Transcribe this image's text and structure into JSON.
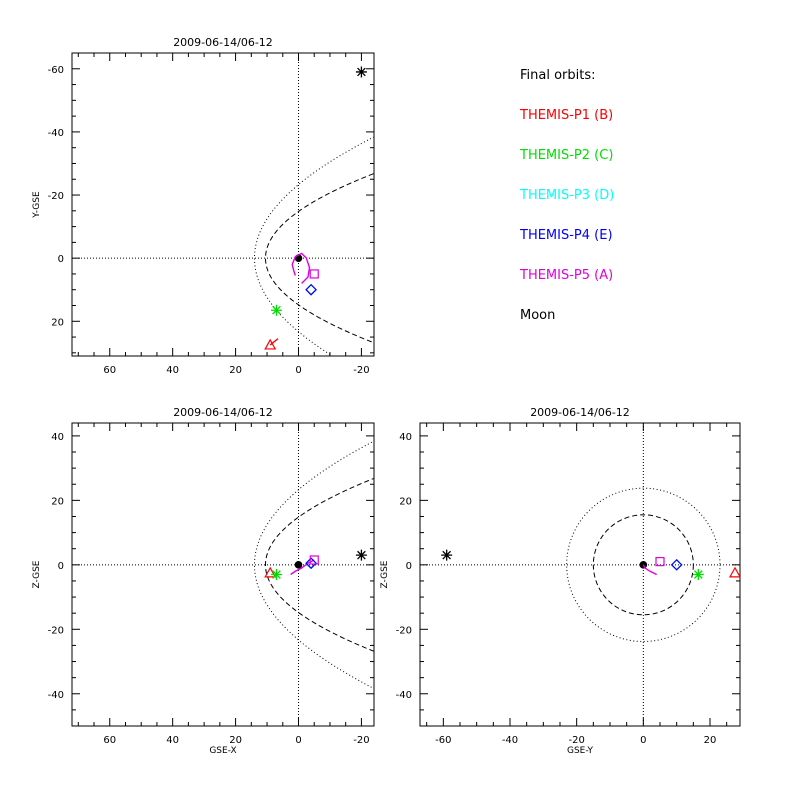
{
  "legend": {
    "title": "Final orbits:",
    "entries": [
      {
        "label": "THEMIS-P1 (B)",
        "color": "#ff0000",
        "marker": "triangle"
      },
      {
        "label": "THEMIS-P2 (C)",
        "color": "#00e000",
        "marker": "asterisk"
      },
      {
        "label": "THEMIS-P3 (D)",
        "color": "#00ffff",
        "marker": "diamond"
      },
      {
        "label": "THEMIS-P4 (E)",
        "color": "#0000ff",
        "marker": "diamond"
      },
      {
        "label": "THEMIS-P5 (A)",
        "color": "#e000e0",
        "marker": "square"
      },
      {
        "label": "Moon",
        "color": "#000000",
        "marker": "asterisk"
      }
    ]
  },
  "chart_data": [
    {
      "type": "scatter",
      "name": "xy",
      "title": "2009-06-14/06-12",
      "xlabel": "",
      "ylabel": "Y-GSE",
      "xlim": [
        72,
        -24
      ],
      "ylim": [
        31,
        -65
      ],
      "xticks": [
        60,
        40,
        20,
        0,
        -20
      ],
      "yticks": [
        -60,
        -40,
        -20,
        0,
        20
      ],
      "boundaries": [
        {
          "style": "dotted",
          "kind": "parabola",
          "standoff": 14,
          "axis": "y",
          "scale": 23.3
        },
        {
          "style": "dashed",
          "kind": "parabola",
          "standoff": 10.5,
          "axis": "y",
          "scale": 14.8
        }
      ],
      "earth": [
        0,
        0
      ],
      "points": [
        {
          "label": "THEMIS-P1 (B)",
          "x": 9,
          "y": 27.5,
          "trail": [
            [
              6.5,
              25.5
            ],
            [
              9,
              27.5
            ]
          ]
        },
        {
          "label": "THEMIS-P2 (C)",
          "x": 7,
          "y": 16.5
        },
        {
          "label": "THEMIS-P3 (D)",
          "x": -4,
          "y": 10
        },
        {
          "label": "THEMIS-P4 (E)",
          "x": -4,
          "y": 10
        },
        {
          "label": "THEMIS-P5 (A)",
          "x": -5,
          "y": 5,
          "trail": [
            [
              -1,
              8
            ],
            [
              -3,
              6
            ],
            [
              -3.5,
              3
            ],
            [
              -2.5,
              0
            ],
            [
              -1,
              -1.5
            ],
            [
              1,
              -0.5
            ],
            [
              2,
              2
            ],
            [
              1.5,
              4
            ],
            [
              1,
              5.5
            ]
          ]
        },
        {
          "label": "Moon",
          "x": -20,
          "y": -59
        }
      ]
    },
    {
      "type": "scatter",
      "name": "xz",
      "title": "2009-06-14/06-12",
      "xlabel": "GSE-X",
      "ylabel": "Z-GSE",
      "xlim": [
        72,
        -24
      ],
      "ylim": [
        -50,
        44
      ],
      "xticks": [
        60,
        40,
        20,
        0,
        -20
      ],
      "yticks": [
        40,
        20,
        0,
        -20,
        -40
      ],
      "boundaries": [
        {
          "style": "dotted",
          "kind": "parabola",
          "standoff": 14,
          "axis": "z",
          "scale": 23.3
        },
        {
          "style": "dashed",
          "kind": "parabola",
          "standoff": 10.5,
          "axis": "z",
          "scale": 14.8
        }
      ],
      "earth": [
        0,
        0
      ],
      "points": [
        {
          "label": "THEMIS-P1 (B)",
          "x": 9,
          "y": -2.5
        },
        {
          "label": "THEMIS-P2 (C)",
          "x": 7,
          "y": -3
        },
        {
          "label": "THEMIS-P3 (D)",
          "x": -4,
          "y": 0.5
        },
        {
          "label": "THEMIS-P4 (E)",
          "x": -4,
          "y": 0.5
        },
        {
          "label": "THEMIS-P5 (A)",
          "x": -5,
          "y": 1.5,
          "trail": [
            [
              2.5,
              -3
            ],
            [
              1,
              -2
            ],
            [
              -1,
              -1
            ],
            [
              -3,
              0.5
            ],
            [
              -5,
              1.5
            ]
          ]
        },
        {
          "label": "Moon",
          "x": -20,
          "y": 3
        }
      ]
    },
    {
      "type": "scatter",
      "name": "yz",
      "title": "2009-06-14/06-12",
      "xlabel": "GSE-Y",
      "ylabel": "Z-GSE",
      "xlim": [
        -67,
        29
      ],
      "ylim": [
        -50,
        44
      ],
      "xticks": [
        -60,
        -40,
        -20,
        0,
        20
      ],
      "yticks": [
        40,
        20,
        0,
        -20,
        -40
      ],
      "boundaries": [
        {
          "style": "dotted",
          "kind": "circle",
          "radius": 23
        },
        {
          "style": "dashed",
          "kind": "circle",
          "radius": 15
        }
      ],
      "earth": [
        0,
        0
      ],
      "points": [
        {
          "label": "THEMIS-P1 (B)",
          "x": 27.5,
          "y": -2.5
        },
        {
          "label": "THEMIS-P2 (C)",
          "x": 16.5,
          "y": -3
        },
        {
          "label": "THEMIS-P3 (D)",
          "x": 10,
          "y": 0
        },
        {
          "label": "THEMIS-P4 (E)",
          "x": 10,
          "y": 0
        },
        {
          "label": "THEMIS-P5 (A)",
          "x": 5,
          "y": 1,
          "trail": [
            [
              4,
              -3
            ],
            [
              2,
              -2
            ],
            [
              0.5,
              -1
            ],
            [
              0,
              0
            ]
          ]
        },
        {
          "label": "Moon",
          "x": -59,
          "y": 3
        }
      ]
    }
  ]
}
